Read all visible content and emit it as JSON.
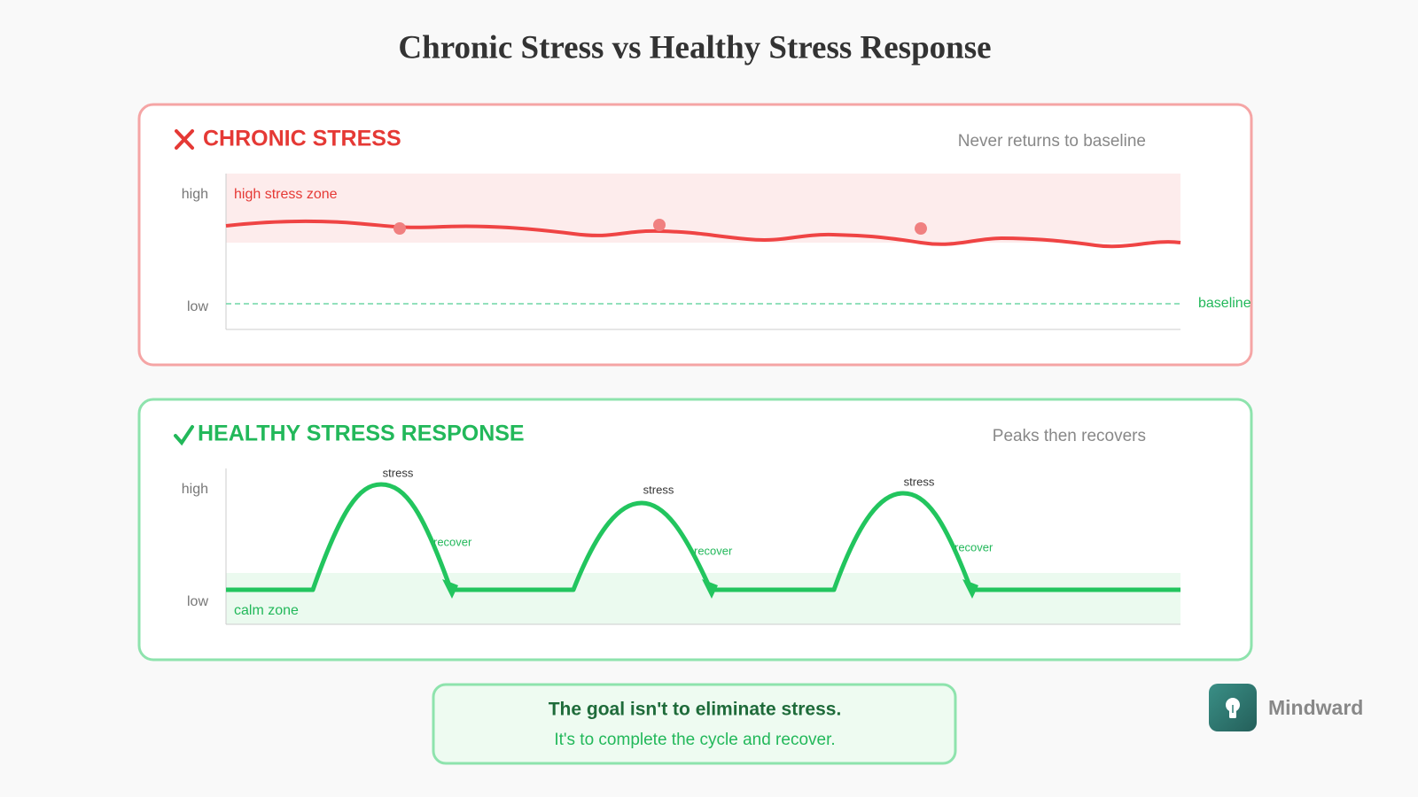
{
  "header": {
    "title": "Chronic Stress vs Healthy Stress Response"
  },
  "panels": [
    {
      "title": "CHRONIC STRESS",
      "note": "Never returns to baseline",
      "axis": {
        "high": "high",
        "low": "low"
      },
      "zone": "high stress zone",
      "baseline": "baseline"
    },
    {
      "title": "HEALTHY STRESS RESPONSE",
      "note": "Peaks then recovers",
      "axis": {
        "high": "high",
        "low": "low"
      },
      "zone": "calm zone",
      "peaks": [
        "stress",
        "stress",
        "stress"
      ],
      "recoveries": [
        "recover",
        "recover",
        "recover"
      ]
    }
  ],
  "callout": {
    "headline": "The goal isn't to eliminate stress.",
    "subline": "It's to complete the cycle and recover."
  },
  "brand": {
    "name": "Mindward"
  }
}
